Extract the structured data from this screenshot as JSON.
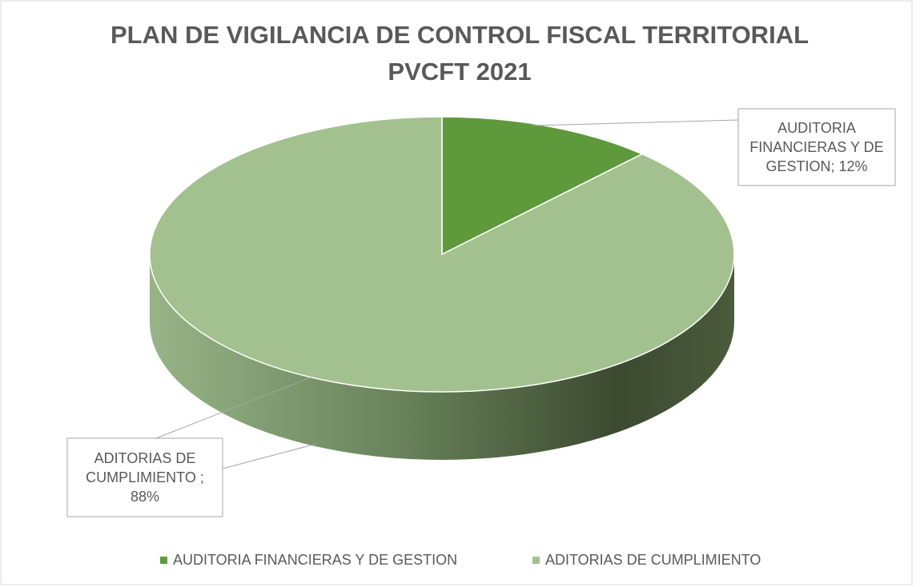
{
  "chart_data": {
    "type": "pie",
    "title": [
      "PLAN DE VIGILANCIA DE CONTROL FISCAL TERRITORIAL",
      "PVCFT 2021"
    ],
    "categories": [
      "AUDITORIA FINANCIERAS Y DE GESTION",
      "ADITORIAS DE CUMPLIMIENTO"
    ],
    "values": [
      12,
      88
    ],
    "value_labels": [
      "AUDITORIA FINANCIERAS Y DE GESTION; 12%",
      "ADITORIAS DE CUMPLIMIENTO ; 88%"
    ],
    "colors": [
      "#5e9a3c",
      "#a2c18f"
    ],
    "legend": "bottom"
  }
}
